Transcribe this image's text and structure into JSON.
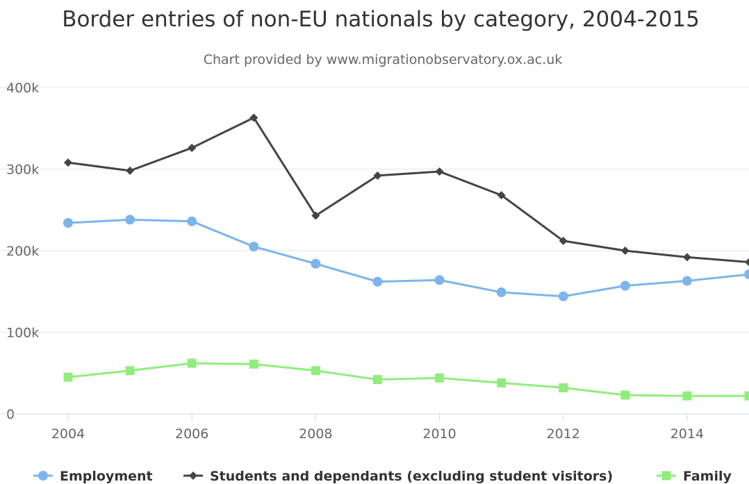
{
  "chart_data": {
    "type": "line",
    "title": "Border entries of non-EU nationals by category, 2004-2015",
    "subtitle": "Chart provided by www.migrationobservatory.ox.ac.uk",
    "xlabel": "",
    "ylabel": "",
    "x": [
      2004,
      2005,
      2006,
      2007,
      2008,
      2009,
      2010,
      2011,
      2012,
      2013,
      2014,
      2015
    ],
    "xlim": [
      2004,
      2015
    ],
    "ylim": [
      0,
      400000
    ],
    "x_ticks": [
      2004,
      2006,
      2008,
      2010,
      2012,
      2014
    ],
    "x_tick_labels": [
      "2004",
      "2006",
      "2008",
      "2010",
      "2012",
      "2014"
    ],
    "y_ticks": [
      0,
      100000,
      200000,
      300000,
      400000
    ],
    "y_tick_labels": [
      "0",
      "100k",
      "200k",
      "300k",
      "400k"
    ],
    "grid": "horizontal",
    "legend_position": "bottom",
    "series": [
      {
        "name": "Employment",
        "color": "#7cb5ec",
        "marker": "circle",
        "values": [
          234000,
          238000,
          236000,
          205000,
          184000,
          162000,
          164000,
          149000,
          144000,
          157000,
          163000,
          171000
        ]
      },
      {
        "name": "Students and dependants (excluding student visitors)",
        "color": "#434348",
        "marker": "diamond",
        "values": [
          308000,
          298000,
          326000,
          363000,
          243000,
          292000,
          297000,
          268000,
          212000,
          200000,
          192000,
          186000
        ]
      },
      {
        "name": "Family",
        "color": "#90ed7d",
        "marker": "square",
        "values": [
          45000,
          53000,
          62000,
          61000,
          53000,
          42000,
          44000,
          38000,
          32000,
          23000,
          22000,
          22000
        ]
      }
    ]
  }
}
